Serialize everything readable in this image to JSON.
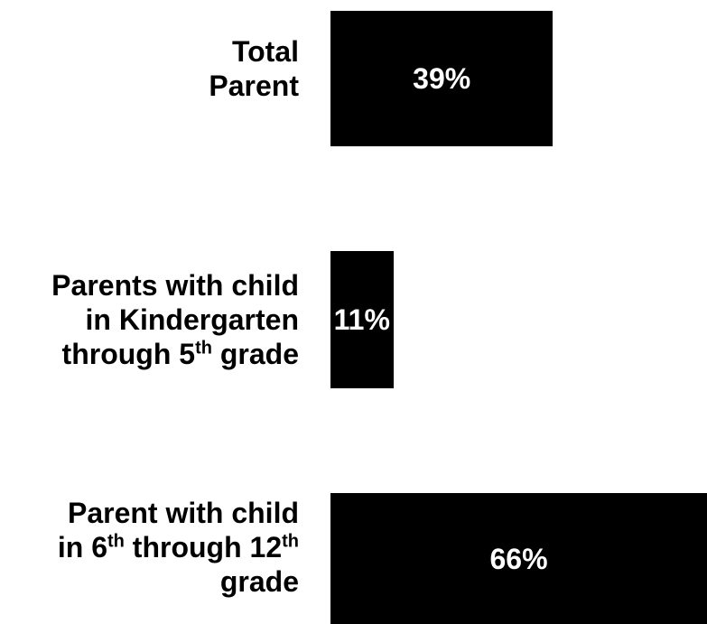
{
  "chart_data": {
    "type": "bar",
    "orientation": "horizontal",
    "categories": [
      "Total Parent",
      "Parents with child in Kindergarten through 5th grade",
      "Parent with child in 6th through 12th grade"
    ],
    "category_lines": [
      [
        [
          "Total"
        ],
        [
          "Parent"
        ]
      ],
      [
        [
          "Parents with child"
        ],
        [
          "in Kindergarten"
        ],
        [
          "through 5",
          "th",
          " grade"
        ]
      ],
      [
        [
          "Parent with child"
        ],
        [
          "in 6",
          "th",
          " through 12",
          "th"
        ],
        [
          "grade"
        ]
      ]
    ],
    "values": [
      39,
      11,
      66
    ],
    "value_labels": [
      "39%",
      "11%",
      "66%"
    ],
    "xlim": [
      0,
      66
    ],
    "grid": false,
    "bar_color": "#000000",
    "label_color": "#ffffff"
  }
}
